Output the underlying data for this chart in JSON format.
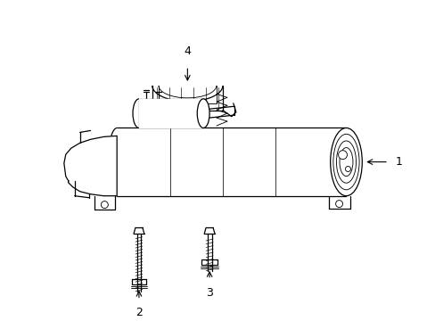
{
  "background_color": "#ffffff",
  "line_color": "#000000",
  "fig_width": 4.89,
  "fig_height": 3.6,
  "dpi": 100,
  "label_fs": 9
}
